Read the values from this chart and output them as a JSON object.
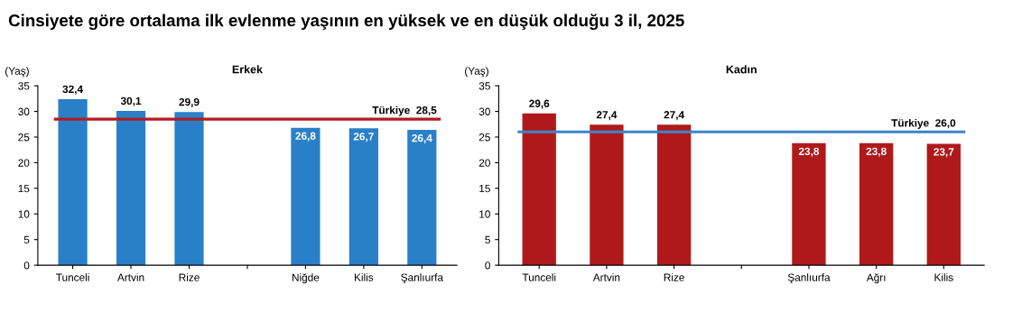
{
  "chart_data": [
    {
      "type": "bar",
      "title": "Erkek",
      "annotations": [
        "Cinsiyete göre ortalama ilk evlenme yaşının en yüksek ve en düşük olduğu 3 il, 2025"
      ],
      "ylabel": "(Yaş)",
      "categories": [
        "Tunceli",
        "Artvin",
        "Rize",
        null,
        "Niğde",
        "Kilis",
        "Şanlıurfa"
      ],
      "values": [
        32.4,
        30.1,
        29.9,
        null,
        26.8,
        26.7,
        26.4
      ],
      "value_labels": [
        "32,4",
        "30,1",
        "29,9",
        null,
        "26,8",
        "26,7",
        "26,4"
      ],
      "color": "#2a80c8",
      "ylim": [
        0,
        35
      ],
      "yticks": [
        0,
        5,
        10,
        15,
        20,
        25,
        30,
        35
      ],
      "grid": false,
      "ref_lines": [
        {
          "axis": "y",
          "value": 28.5,
          "label": "Türkiye  28,5",
          "color": "#b01c20"
        }
      ]
    },
    {
      "type": "bar",
      "title": "Kadın",
      "ylabel": "(Yaş)",
      "categories": [
        "Tunceli",
        "Artvin",
        "Rize",
        null,
        "Şanlıurfa",
        "Ağrı",
        "Kilis"
      ],
      "values": [
        29.6,
        27.4,
        27.4,
        null,
        23.8,
        23.8,
        23.7
      ],
      "value_labels": [
        "29,6",
        "27,4",
        "27,4",
        null,
        "23,8",
        "23,8",
        "23,7"
      ],
      "color": "#b0191c",
      "ylim": [
        0,
        35
      ],
      "yticks": [
        0,
        5,
        10,
        15,
        20,
        25,
        30,
        35
      ],
      "grid": false,
      "ref_lines": [
        {
          "axis": "y",
          "value": 26.0,
          "label": "Türkiye  26,0",
          "color": "#3a86c8"
        }
      ]
    }
  ]
}
